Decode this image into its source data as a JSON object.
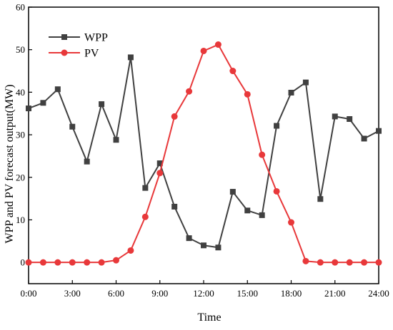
{
  "chart_data": {
    "type": "line",
    "xlabel": "Time",
    "ylabel": "WPP and PV forecast output(MW)",
    "xlim": [
      0,
      24
    ],
    "ylim": [
      -5,
      60
    ],
    "x_tick_values": [
      0,
      3,
      6,
      9,
      12,
      15,
      18,
      21,
      24
    ],
    "x_tick_labels": [
      "0:00",
      "3:00",
      "6:00",
      "9:00",
      "12:00",
      "15:00",
      "18:00",
      "21:00",
      "24:00"
    ],
    "y_tick_values": [
      0,
      10,
      20,
      30,
      40,
      50,
      60
    ],
    "y_tick_labels": [
      "0",
      "10",
      "20",
      "30",
      "40",
      "50",
      "60"
    ],
    "grid": false,
    "legend_position": "top-left",
    "x": [
      0,
      1,
      2,
      3,
      4,
      5,
      6,
      7,
      8,
      9,
      10,
      11,
      12,
      13,
      14,
      15,
      16,
      17,
      18,
      19,
      20,
      21,
      22,
      23,
      24
    ],
    "series": [
      {
        "name": "WPP",
        "color": "#404040",
        "marker": "square",
        "values": [
          36.2,
          37.5,
          40.7,
          31.9,
          23.7,
          37.2,
          28.8,
          48.2,
          17.5,
          23.3,
          13.1,
          5.7,
          4.0,
          3.5,
          16.6,
          12.2,
          11.1,
          32.1,
          39.9,
          42.3,
          14.9,
          34.3,
          33.7,
          29.1,
          30.9
        ]
      },
      {
        "name": "PV",
        "color": "#e8383a",
        "marker": "circle",
        "values": [
          0,
          0,
          0,
          0,
          0,
          0,
          0.5,
          2.8,
          10.7,
          21.0,
          34.3,
          40.2,
          49.7,
          51.2,
          45.0,
          39.5,
          25.3,
          16.7,
          9.4,
          0.3,
          0,
          0,
          0,
          0,
          0
        ]
      }
    ]
  }
}
